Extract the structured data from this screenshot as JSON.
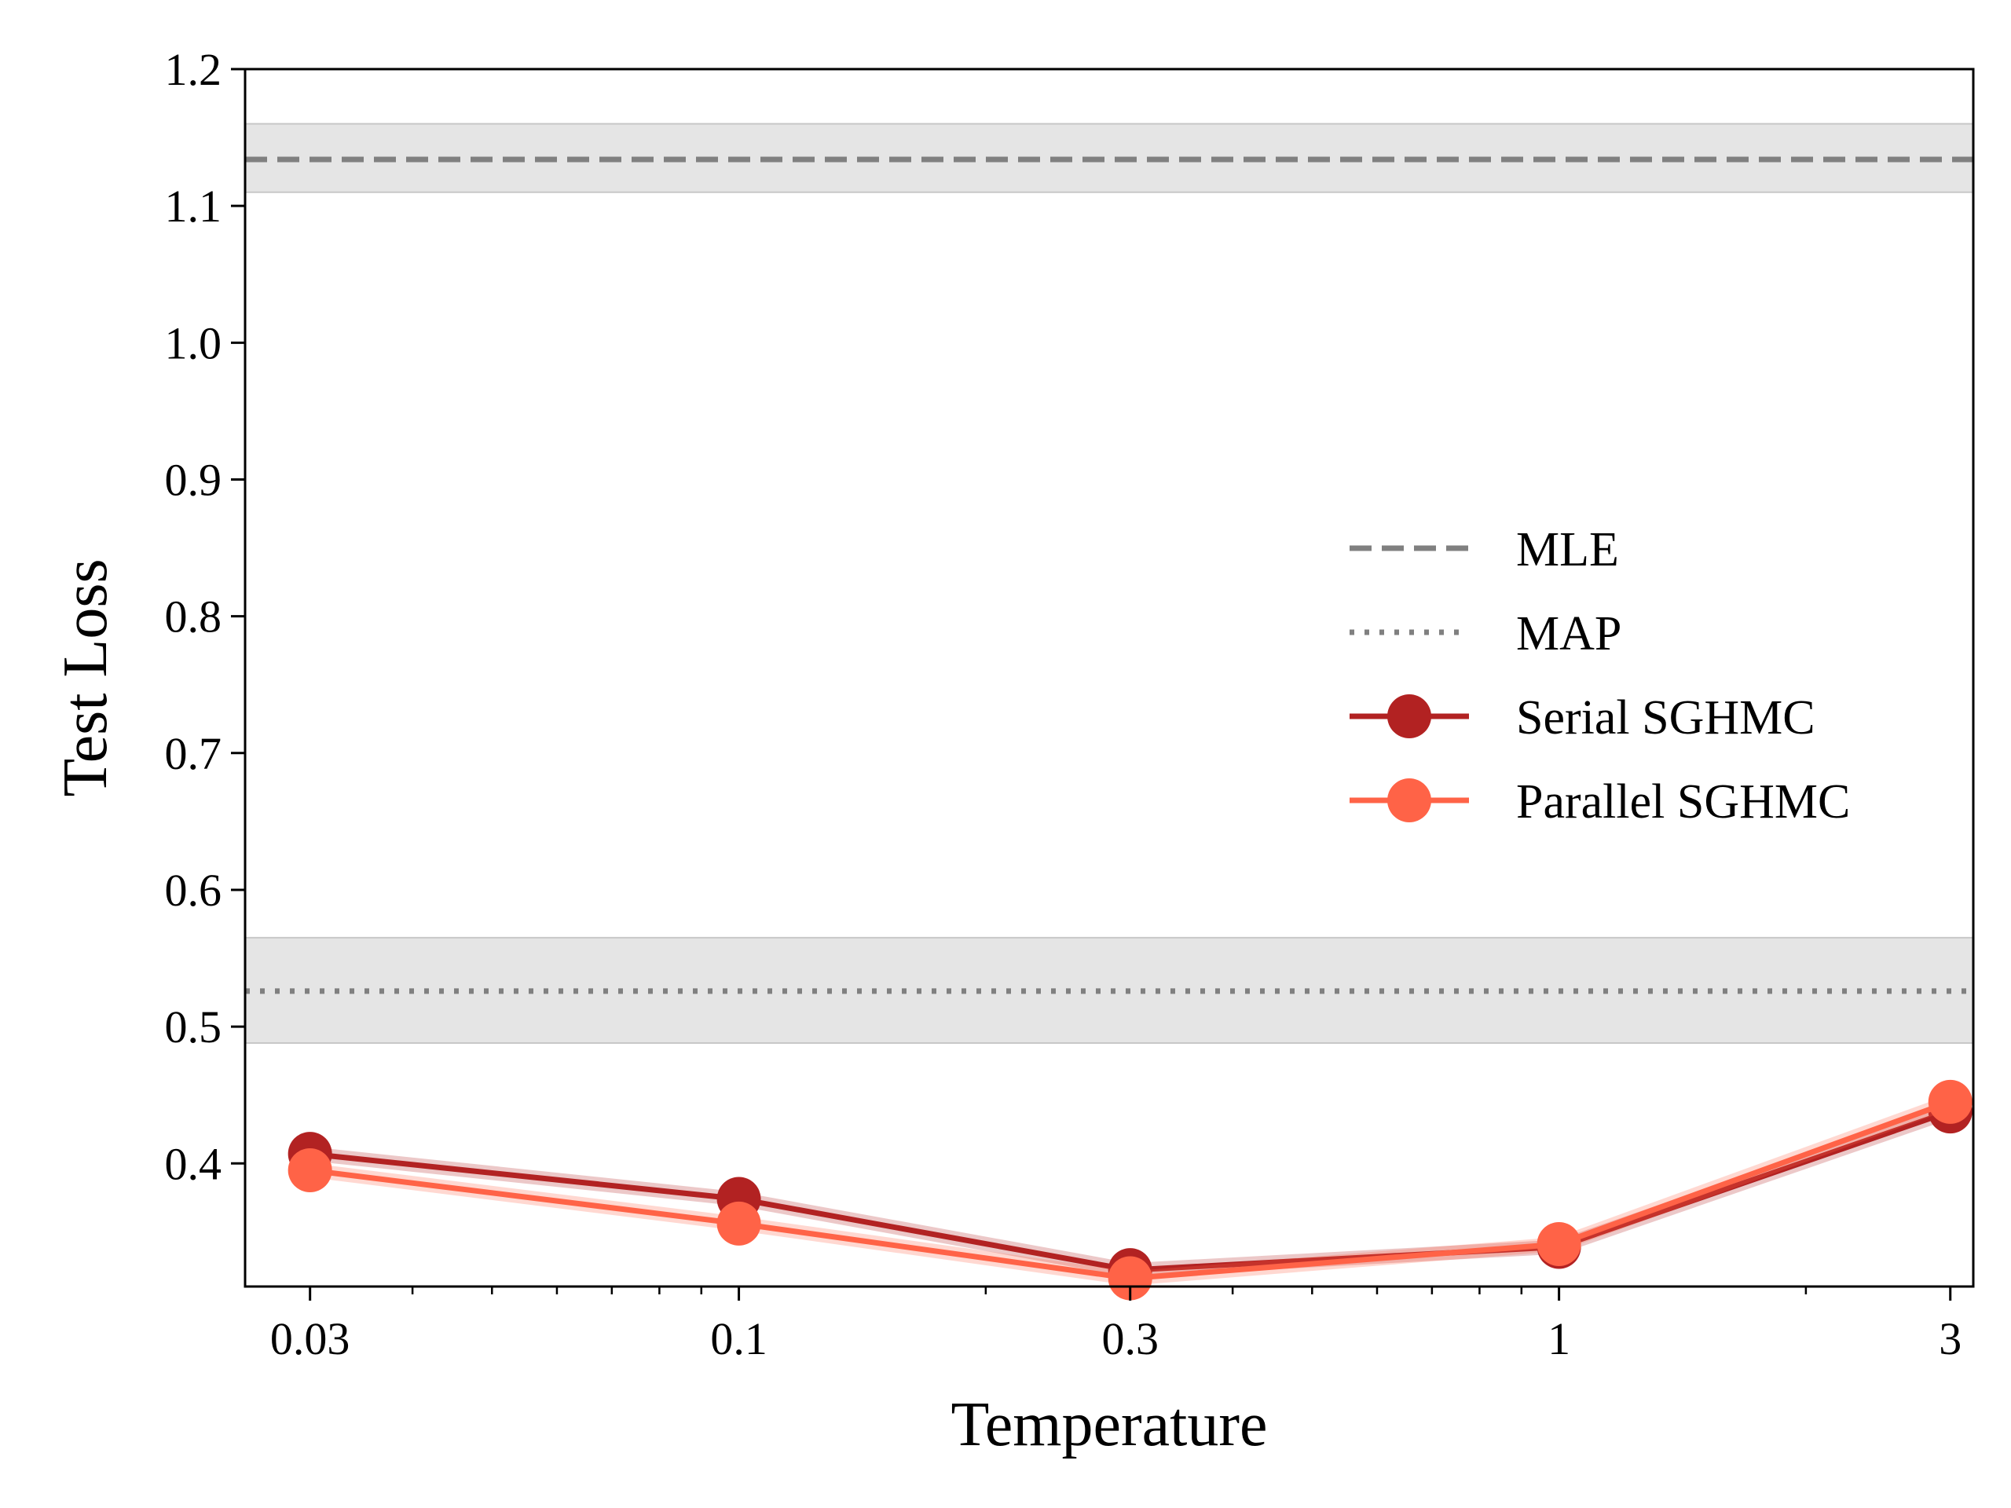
{
  "chart_data": {
    "type": "line",
    "xlabel": "Temperature",
    "ylabel": "Test Loss",
    "xscale": "log",
    "xlim": [
      0.025,
      3.2
    ],
    "ylim": [
      0.31,
      1.2
    ],
    "grid": false,
    "legend_position": "center-right",
    "x_ticks": [
      {
        "value": 0.03,
        "label": "0.03"
      },
      {
        "value": 0.1,
        "label": "0.1"
      },
      {
        "value": 0.3,
        "label": "0.3"
      },
      {
        "value": 1,
        "label": "1"
      },
      {
        "value": 3,
        "label": "3"
      }
    ],
    "y_ticks": [
      {
        "value": 0.4,
        "label": "0.4"
      },
      {
        "value": 0.5,
        "label": "0.5"
      },
      {
        "value": 0.6,
        "label": "0.6"
      },
      {
        "value": 0.7,
        "label": "0.7"
      },
      {
        "value": 0.8,
        "label": "0.8"
      },
      {
        "value": 0.9,
        "label": "0.9"
      },
      {
        "value": 1.0,
        "label": "1.0"
      },
      {
        "value": 1.1,
        "label": "1.1"
      },
      {
        "value": 1.2,
        "label": "1.2"
      }
    ],
    "reference_lines": [
      {
        "name": "MLE",
        "value": 1.134,
        "band": [
          1.11,
          1.16
        ],
        "style": "dashed",
        "color": "#808080"
      },
      {
        "name": "MAP",
        "value": 0.526,
        "band": [
          0.488,
          0.565
        ],
        "style": "dotted",
        "color": "#808080"
      }
    ],
    "series": [
      {
        "name": "Serial SGHMC",
        "color": "#b22222",
        "x": [
          0.03,
          0.1,
          0.3,
          1,
          3
        ],
        "values": [
          0.407,
          0.374,
          0.322,
          0.339,
          0.438
        ]
      },
      {
        "name": "Parallel SGHMC",
        "color": "#ff6347",
        "x": [
          0.03,
          0.1,
          0.3,
          1,
          3
        ],
        "values": [
          0.395,
          0.356,
          0.316,
          0.341,
          0.445
        ]
      }
    ]
  }
}
